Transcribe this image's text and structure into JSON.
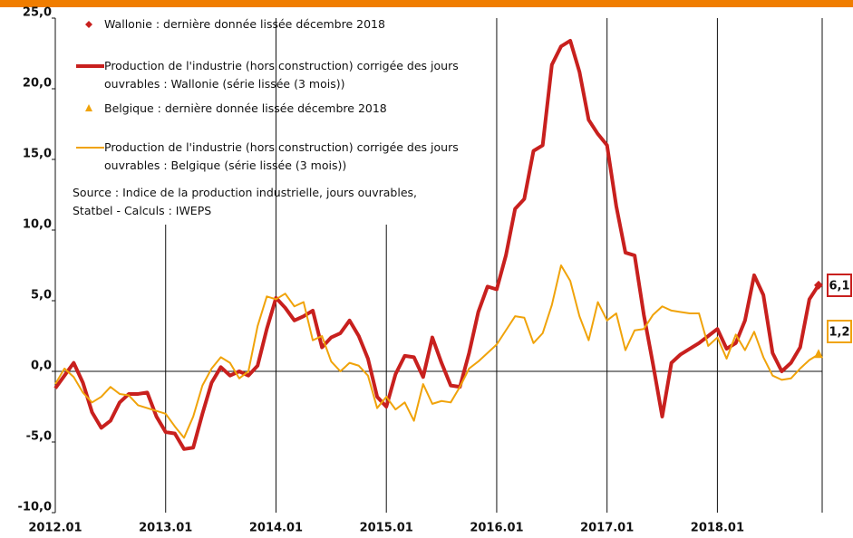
{
  "chart_data": {
    "type": "line",
    "categories": [
      "2012.01",
      null,
      null,
      null,
      null,
      null,
      null,
      null,
      null,
      null,
      null,
      null,
      "2013.01",
      null,
      null,
      null,
      null,
      null,
      null,
      null,
      null,
      null,
      null,
      null,
      "2014.01",
      null,
      null,
      null,
      null,
      null,
      null,
      null,
      null,
      null,
      null,
      null,
      "2015.01",
      null,
      null,
      null,
      null,
      null,
      null,
      null,
      null,
      null,
      null,
      null,
      "2016.01",
      null,
      null,
      null,
      null,
      null,
      null,
      null,
      null,
      null,
      null,
      null,
      "2017.01",
      null,
      null,
      null,
      null,
      null,
      null,
      null,
      null,
      null,
      null,
      null,
      "2018.01",
      null,
      null,
      null,
      null,
      null,
      null,
      null,
      null,
      null,
      null,
      null
    ],
    "ylim": [
      -10,
      25
    ],
    "yticks": [
      {
        "value": -10,
        "label": "-10,0"
      },
      {
        "value": -5,
        "label": "-5,0"
      },
      {
        "value": 0,
        "label": "0,0"
      },
      {
        "value": 5,
        "label": "5,0"
      },
      {
        "value": 10,
        "label": "10,0"
      },
      {
        "value": 15,
        "label": "15,0"
      },
      {
        "value": 20,
        "label": "20,0"
      },
      {
        "value": 25,
        "label": "25,0"
      }
    ],
    "series": [
      {
        "name": "Production de l'industrie (hors construction) corrigée des jours ouvrables : Wallonie (série lissée (3 mois))",
        "marker_name": "Wallonie : dernière donnée lissée décembre 2018",
        "marker": "diamond",
        "color": "#c8201e",
        "values": [
          -1.2,
          -0.3,
          0.6,
          -0.8,
          -2.9,
          -4.0,
          -3.5,
          -2.2,
          -1.6,
          -1.6,
          -1.5,
          -3.2,
          -4.3,
          -4.4,
          -5.5,
          -5.4,
          -3.0,
          -0.8,
          0.3,
          -0.3,
          0.0,
          -0.3,
          0.4,
          3.0,
          5.2,
          4.5,
          3.6,
          3.9,
          4.3,
          1.7,
          2.4,
          2.7,
          3.6,
          2.5,
          0.9,
          -1.8,
          -2.5,
          -0.2,
          1.1,
          1.0,
          -0.4,
          2.4,
          0.6,
          -1.0,
          -1.1,
          1.3,
          4.2,
          6.0,
          5.8,
          8.2,
          11.5,
          12.2,
          15.6,
          16.0,
          21.7,
          23.0,
          23.4,
          21.2,
          17.8,
          16.8,
          16.0,
          11.7,
          8.4,
          8.2,
          4.0,
          0.5,
          -3.2,
          0.6,
          1.2,
          1.6,
          2.0,
          2.5,
          3.0,
          1.6,
          2.0,
          3.6,
          6.8,
          5.4,
          1.3,
          0.0,
          0.6,
          1.7,
          5.1,
          6.1
        ],
        "value_labels": [
          null,
          null,
          null,
          null,
          null,
          null,
          null,
          null,
          null,
          null,
          null,
          null,
          null,
          null,
          null,
          null,
          null,
          null,
          null,
          null,
          null,
          null,
          null,
          null,
          null,
          null,
          null,
          null,
          null,
          null,
          null,
          null,
          null,
          null,
          null,
          null,
          null,
          null,
          null,
          null,
          null,
          null,
          null,
          null,
          null,
          null,
          null,
          null,
          null,
          null,
          null,
          null,
          null,
          null,
          null,
          null,
          null,
          null,
          null,
          null,
          null,
          null,
          null,
          null,
          null,
          null,
          null,
          null,
          null,
          null,
          null,
          null,
          null,
          null,
          null,
          null,
          null,
          null,
          null,
          null,
          null,
          null,
          null,
          "6,1"
        ]
      },
      {
        "name": "Production de l'industrie (hors construction) corrigée des jours ouvrables : Belgique (série lissée (3 mois))",
        "marker_name": "Belgique : dernière donnée lissée décembre 2018",
        "marker": "triangle",
        "color": "#f0a30a",
        "values": [
          -0.9,
          0.2,
          -0.4,
          -1.5,
          -2.2,
          -1.8,
          -1.1,
          -1.6,
          -1.7,
          -2.4,
          -2.6,
          -2.8,
          -3.0,
          -3.9,
          -4.7,
          -3.2,
          -1.0,
          0.2,
          1.0,
          0.6,
          -0.5,
          0.0,
          3.2,
          5.3,
          5.1,
          5.5,
          4.6,
          4.9,
          2.2,
          2.5,
          0.7,
          0.0,
          0.6,
          0.4,
          -0.3,
          -2.6,
          -1.8,
          -2.7,
          -2.2,
          -3.5,
          -0.9,
          -2.3,
          -2.1,
          -2.2,
          -1.1,
          0.2,
          0.7,
          1.3,
          1.9,
          2.9,
          3.9,
          3.8,
          2.0,
          2.7,
          4.7,
          7.5,
          6.4,
          3.9,
          2.2,
          4.9,
          3.6,
          4.1,
          1.5,
          2.9,
          3.0,
          4.0,
          4.6,
          4.3,
          4.2,
          4.1,
          4.1,
          1.8,
          2.4,
          0.9,
          2.6,
          1.5,
          2.8,
          1.0,
          -0.3,
          -0.6,
          -0.5,
          0.2,
          0.8,
          1.2
        ],
        "value_labels": [
          null,
          null,
          null,
          null,
          null,
          null,
          null,
          null,
          null,
          null,
          null,
          null,
          null,
          null,
          null,
          null,
          null,
          null,
          null,
          null,
          null,
          null,
          null,
          null,
          null,
          null,
          null,
          null,
          null,
          null,
          null,
          null,
          null,
          null,
          null,
          null,
          null,
          null,
          null,
          null,
          null,
          null,
          null,
          null,
          null,
          null,
          null,
          null,
          null,
          null,
          null,
          null,
          null,
          null,
          null,
          null,
          null,
          null,
          null,
          null,
          null,
          null,
          null,
          null,
          null,
          null,
          null,
          null,
          null,
          null,
          null,
          null,
          null,
          null,
          null,
          null,
          null,
          null,
          null,
          null,
          null,
          null,
          null,
          "1,2"
        ]
      }
    ],
    "annotation": "Source : Indice de la production industrielle, jours ouvrables, Statbel - Calculs : IWEPS"
  }
}
